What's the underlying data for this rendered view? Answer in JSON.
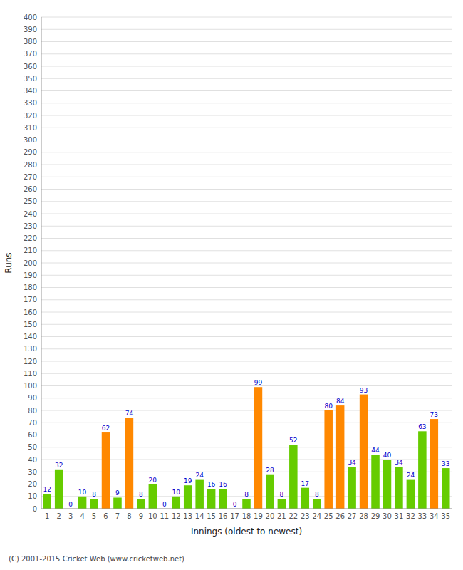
{
  "chart_data": {
    "type": "bar",
    "xlabel": "Innings (oldest to newest)",
    "ylabel": "Runs",
    "annotations": [
      "(C) 2001-2015 Cricket Web (www.cricketweb.net)"
    ],
    "categories": [
      "1",
      "2",
      "3",
      "4",
      "5",
      "6",
      "7",
      "8",
      "9",
      "10",
      "11",
      "12",
      "13",
      "14",
      "15",
      "16",
      "17",
      "18",
      "19",
      "20",
      "21",
      "22",
      "23",
      "24",
      "25",
      "26",
      "27",
      "28",
      "29",
      "30",
      "31",
      "32",
      "33",
      "34",
      "35"
    ],
    "values": [
      12,
      32,
      0,
      10,
      8,
      62,
      9,
      74,
      8,
      20,
      0,
      10,
      19,
      24,
      16,
      16,
      0,
      8,
      99,
      28,
      8,
      52,
      17,
      8,
      80,
      84,
      34,
      93,
      44,
      40,
      34,
      24,
      63,
      73,
      33
    ],
    "colors": [
      "#66cc00",
      "#66cc00",
      "#66cc00",
      "#66cc00",
      "#66cc00",
      "#ff8800",
      "#66cc00",
      "#ff8800",
      "#66cc00",
      "#66cc00",
      "#66cc00",
      "#66cc00",
      "#66cc00",
      "#66cc00",
      "#66cc00",
      "#66cc00",
      "#66cc00",
      "#66cc00",
      "#ff8800",
      "#66cc00",
      "#66cc00",
      "#66cc00",
      "#66cc00",
      "#66cc00",
      "#ff8800",
      "#ff8800",
      "#66cc00",
      "#ff8800",
      "#66cc00",
      "#66cc00",
      "#66cc00",
      "#66cc00",
      "#66cc00",
      "#ff8800",
      "#66cc00"
    ],
    "ylim": [
      0,
      400
    ],
    "yticks": [
      0,
      10,
      20,
      30,
      40,
      50,
      60,
      70,
      80,
      90,
      100,
      110,
      120,
      130,
      140,
      150,
      160,
      170,
      180,
      190,
      200,
      210,
      220,
      230,
      240,
      250,
      260,
      270,
      280,
      290,
      300,
      310,
      320,
      330,
      340,
      350,
      360,
      370,
      380,
      390,
      400
    ],
    "grid": true,
    "data_labels": true
  }
}
